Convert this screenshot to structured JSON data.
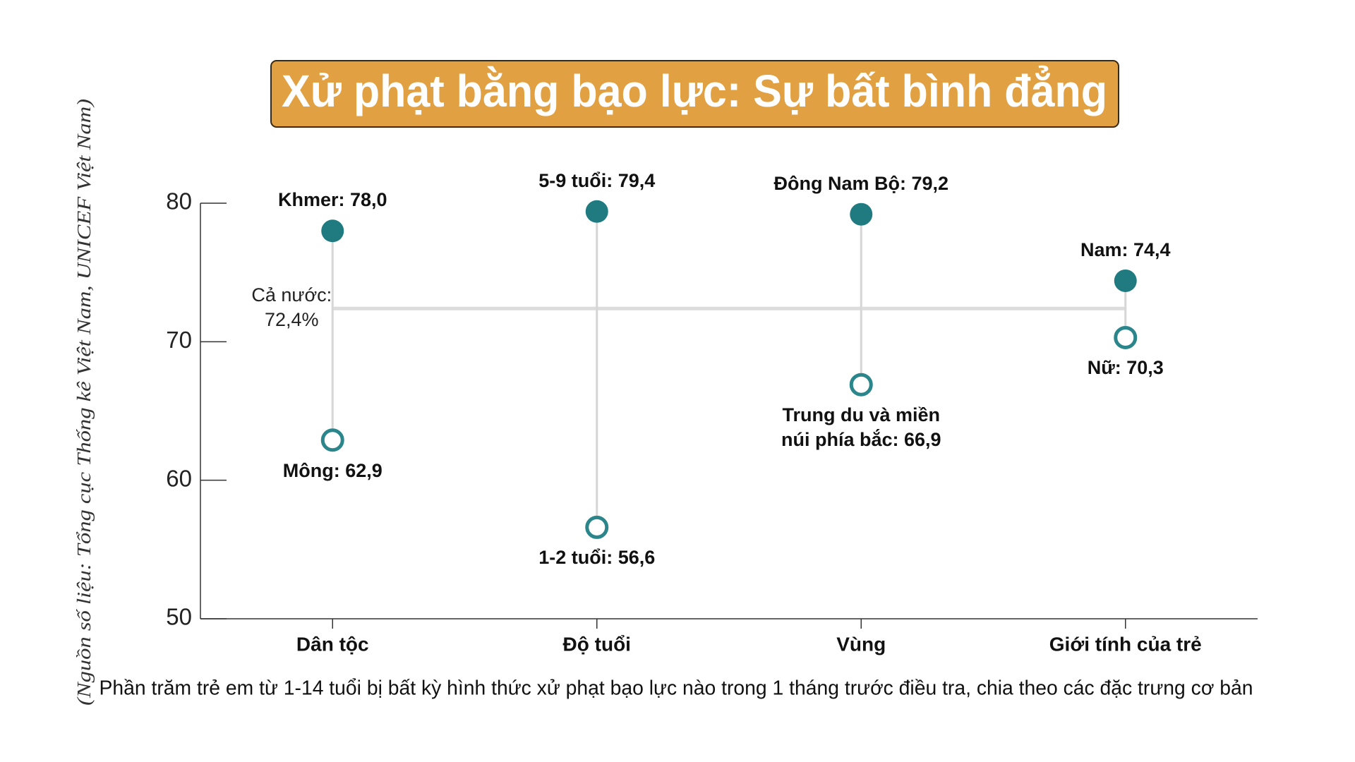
{
  "chart_data": {
    "type": "dumbbell",
    "title": "Xử phạt bằng bạo lực: Sự bất bình đẳng",
    "caption": "Phần trăm trẻ em từ 1-14 tuổi bị bất kỳ hình thức xử phạt bạo lực nào trong 1 tháng trước điều tra, chia theo các đặc trưng cơ bản",
    "source": "(Nguồn số liệu: Tổng cục Thống kê Việt Nam, UNICEF Việt Nam)",
    "categories": [
      "Dân tộc",
      "Độ tuổi",
      "Vùng",
      "Giới tính của trẻ"
    ],
    "series": [
      {
        "color": "#1f7b80",
        "marker": "filled",
        "values": [
          78.0,
          79.4,
          79.2,
          74.4
        ],
        "value_labels": [
          "Khmer: 78,0",
          "5-9 tuổi: 79,4",
          "Đông Nam Bộ: 79,2",
          "Nam: 74,4"
        ]
      },
      {
        "color": "#2a868b",
        "marker": "open",
        "values": [
          62.9,
          56.6,
          66.9,
          70.3
        ],
        "value_labels": [
          "Mông: 62,9",
          "1-2 tuổi: 56,6",
          "Trung du và miền\nnúi phía bắc: 66,9",
          "Nữ: 70,3"
        ]
      }
    ],
    "reference": {
      "value": 72.4,
      "label": "Cả nước:\n72,4%"
    },
    "ylim": [
      50,
      80
    ],
    "yticks": [
      50,
      60,
      70,
      80
    ]
  }
}
